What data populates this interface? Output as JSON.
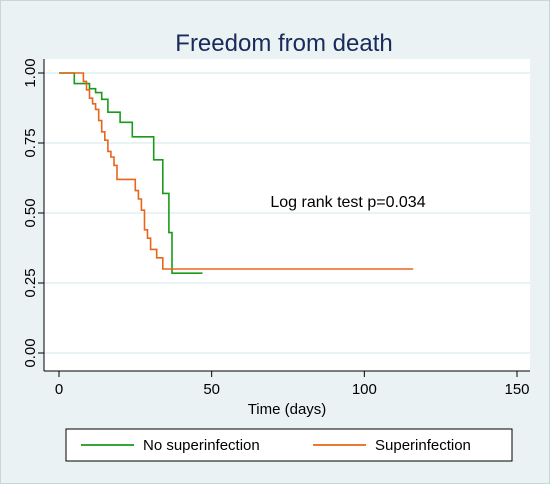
{
  "chart_data": {
    "type": "line",
    "step": true,
    "title": "Freedom from death",
    "xlabel": "Time (days)",
    "ylabel": "",
    "xlim": [
      0,
      150
    ],
    "ylim": [
      0,
      1
    ],
    "xticks": [
      0,
      50,
      100,
      150
    ],
    "yticks": [
      "0.00",
      "0.25",
      "0.50",
      "0.75",
      "1.00"
    ],
    "ytick_values": [
      0,
      0.25,
      0.5,
      0.75,
      1.0
    ],
    "grid": true,
    "legend": "bottom",
    "annotation": "Log rank test p=0.034",
    "series": [
      {
        "name": "No superinfection",
        "color": "#1a9a1a",
        "points": [
          [
            0,
            1
          ],
          [
            5,
            1
          ],
          [
            5,
            0.962
          ],
          [
            10,
            0.962
          ],
          [
            10,
            0.944
          ],
          [
            12,
            0.944
          ],
          [
            12,
            0.93
          ],
          [
            14,
            0.93
          ],
          [
            14,
            0.906
          ],
          [
            16,
            0.906
          ],
          [
            16,
            0.86
          ],
          [
            20,
            0.86
          ],
          [
            20,
            0.824
          ],
          [
            24,
            0.824
          ],
          [
            24,
            0.772
          ],
          [
            31,
            0.772
          ],
          [
            31,
            0.69
          ],
          [
            34,
            0.69
          ],
          [
            34,
            0.57
          ],
          [
            36,
            0.57
          ],
          [
            36,
            0.43
          ],
          [
            37,
            0.43
          ],
          [
            37,
            0.285
          ],
          [
            47,
            0.285
          ]
        ]
      },
      {
        "name": "Superinfection",
        "color": "#e8661a",
        "points": [
          [
            0,
            1
          ],
          [
            8,
            1
          ],
          [
            8,
            0.97
          ],
          [
            9,
            0.97
          ],
          [
            9,
            0.94
          ],
          [
            10,
            0.94
          ],
          [
            10,
            0.91
          ],
          [
            11,
            0.91
          ],
          [
            11,
            0.89
          ],
          [
            12,
            0.89
          ],
          [
            12,
            0.87
          ],
          [
            13,
            0.87
          ],
          [
            13,
            0.83
          ],
          [
            14,
            0.83
          ],
          [
            14,
            0.79
          ],
          [
            15,
            0.79
          ],
          [
            15,
            0.76
          ],
          [
            16,
            0.76
          ],
          [
            16,
            0.72
          ],
          [
            17,
            0.72
          ],
          [
            17,
            0.7
          ],
          [
            18,
            0.7
          ],
          [
            18,
            0.67
          ],
          [
            19,
            0.67
          ],
          [
            19,
            0.62
          ],
          [
            25,
            0.62
          ],
          [
            25,
            0.58
          ],
          [
            26,
            0.58
          ],
          [
            26,
            0.55
          ],
          [
            27,
            0.55
          ],
          [
            27,
            0.51
          ],
          [
            28,
            0.51
          ],
          [
            28,
            0.44
          ],
          [
            29,
            0.44
          ],
          [
            29,
            0.41
          ],
          [
            30,
            0.41
          ],
          [
            30,
            0.37
          ],
          [
            32,
            0.37
          ],
          [
            32,
            0.34
          ],
          [
            34,
            0.34
          ],
          [
            34,
            0.3
          ],
          [
            116,
            0.3
          ]
        ]
      }
    ]
  },
  "colors": {
    "background": "#eaf2f3",
    "plot": "#ffffff",
    "grid": "#d9ecef",
    "axis": "#000000",
    "title": "#1a2a5a"
  }
}
